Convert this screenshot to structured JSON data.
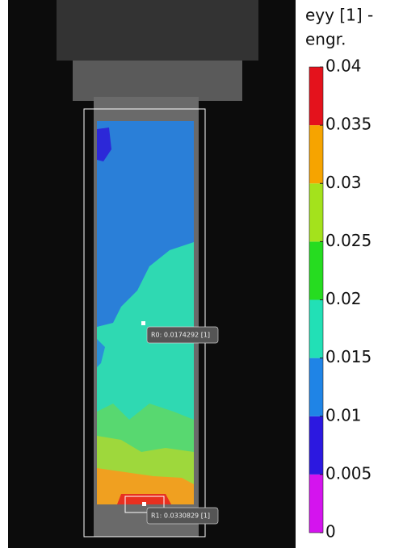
{
  "colorbar": {
    "title_lines": [
      "eyy [1] -",
      "engr."
    ],
    "range": [
      0,
      0.04
    ],
    "ticks": [
      0,
      0.005,
      0.01,
      0.015,
      0.02,
      0.025,
      0.03,
      0.035,
      0.04
    ],
    "colors": [
      "#d414ee",
      "#2c18e0",
      "#1f84e6",
      "#22e0b6",
      "#26dc20",
      "#a4e21c",
      "#f6a400",
      "#e4121c"
    ]
  },
  "probes": [
    {
      "label": "R0: 0.0174292 [1]"
    },
    {
      "label": "R1: 0.0330829 [1]"
    }
  ]
}
